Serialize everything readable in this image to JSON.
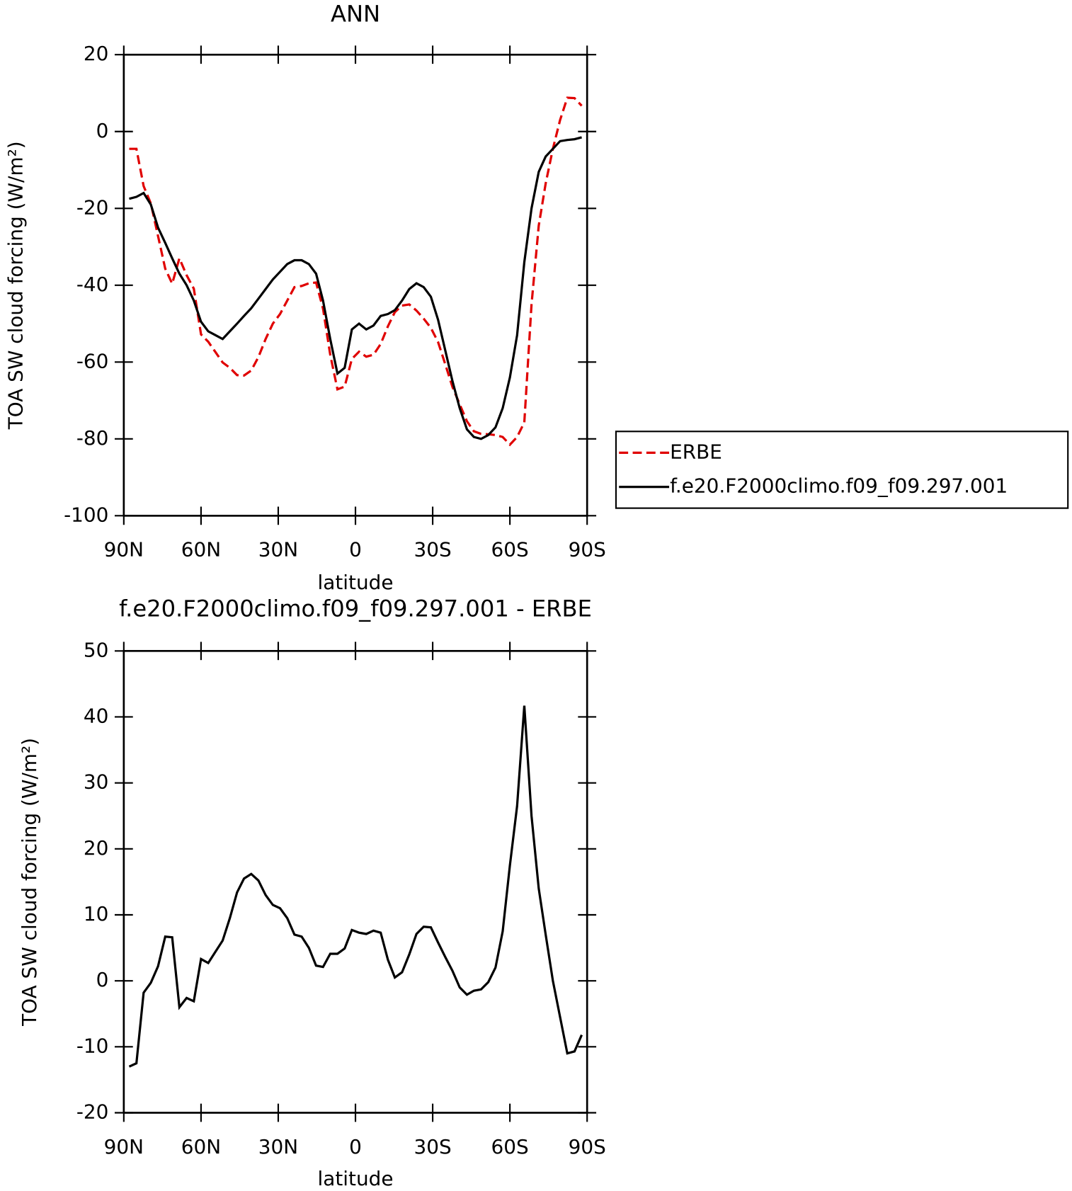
{
  "chart_data": [
    {
      "type": "line",
      "title": "ANN",
      "xlabel": "latitude",
      "ylabel": "TOA SW cloud forcing (W/m²)",
      "x": [
        87.9,
        85.1,
        82.3,
        79.5,
        76.7,
        73.9,
        71.2,
        68.4,
        65.6,
        62.8,
        60.0,
        57.2,
        54.4,
        51.6,
        48.8,
        46.0,
        43.3,
        40.5,
        37.7,
        34.9,
        32.1,
        29.3,
        26.5,
        23.7,
        20.9,
        18.1,
        15.3,
        12.6,
        9.8,
        7.0,
        4.2,
        1.4,
        -1.4,
        -4.2,
        -7.0,
        -9.8,
        -12.6,
        -15.3,
        -18.1,
        -20.9,
        -23.7,
        -26.5,
        -29.3,
        -32.1,
        -34.9,
        -37.7,
        -40.5,
        -43.3,
        -46.0,
        -48.8,
        -51.6,
        -54.4,
        -57.2,
        -60.0,
        -62.8,
        -65.6,
        -68.4,
        -71.2,
        -73.9,
        -76.7,
        -79.5,
        -82.3,
        -85.1,
        -87.9
      ],
      "series": [
        {
          "name": "ERBE",
          "color": "#e00000",
          "linestyle": "dashed",
          "values": [
            -4.5,
            -4.5,
            -14.2,
            -18.7,
            -27.2,
            -35.7,
            -39.6,
            -33.0,
            -37.4,
            -40.9,
            -52.8,
            -54.7,
            -57.4,
            -60.1,
            -61.5,
            -63.4,
            -63.5,
            -62.2,
            -58.7,
            -54.0,
            -50.0,
            -47.5,
            -44.0,
            -40.5,
            -40.2,
            -39.5,
            -39.3,
            -46.1,
            -58.1,
            -67.1,
            -66.4,
            -59.2,
            -57.3,
            -58.6,
            -58.1,
            -55.3,
            -50.7,
            -47.0,
            -45.3,
            -45.0,
            -46.6,
            -48.7,
            -51.1,
            -54.8,
            -60.6,
            -66.5,
            -71.0,
            -75.4,
            -78.0,
            -78.7,
            -78.8,
            -79.0,
            -79.5,
            -81.5,
            -79.5,
            -75.7,
            -45.0,
            -24.5,
            -13.5,
            -4.5,
            3.0,
            8.8,
            8.7,
            6.7
          ]
        },
        {
          "name": "f.e20.F2000climo.f09_f09.297.001",
          "color": "#000000",
          "linestyle": "solid",
          "values": [
            -17.5,
            -17.0,
            -16.0,
            -19.0,
            -25.0,
            -29.0,
            -33.0,
            -37.0,
            -40.0,
            -44.0,
            -49.5,
            -52.0,
            -53.0,
            -54.0,
            -52.0,
            -50.0,
            -48.0,
            -46.0,
            -43.5,
            -41.0,
            -38.5,
            -36.5,
            -34.5,
            -33.5,
            -33.5,
            -34.5,
            -37.0,
            -44.0,
            -54.0,
            -63.0,
            -61.5,
            -51.5,
            -50.0,
            -51.5,
            -50.5,
            -48.0,
            -47.5,
            -46.5,
            -44.0,
            -41.0,
            -39.5,
            -40.5,
            -43.0,
            -49.0,
            -57.0,
            -65.0,
            -72.0,
            -77.5,
            -79.5,
            -80.0,
            -79.0,
            -77.0,
            -72.0,
            -64.0,
            -53.0,
            -34.0,
            -20.0,
            -10.5,
            -6.5,
            -4.5,
            -2.5,
            -2.2,
            -2.0,
            -1.5
          ]
        }
      ],
      "xlim": [
        90,
        -90
      ],
      "xticks": [
        {
          "value": 90,
          "label": "90N"
        },
        {
          "value": 60,
          "label": "60N"
        },
        {
          "value": 30,
          "label": "30N"
        },
        0,
        {
          "value": -30,
          "label": "30S"
        },
        {
          "value": -60,
          "label": "60S"
        },
        {
          "value": -90,
          "label": "90S"
        }
      ],
      "ylim": [
        -100,
        20
      ],
      "yticks": [
        -100,
        -80,
        -60,
        -40,
        -20,
        0,
        20
      ],
      "legend": "right"
    },
    {
      "type": "line",
      "title": "f.e20.F2000climo.f09_f09.297.001 - ERBE",
      "xlabel": "latitude",
      "ylabel": "TOA SW cloud forcing (W/m²)",
      "x": [
        87.9,
        85.1,
        82.3,
        79.5,
        76.7,
        73.9,
        71.2,
        68.4,
        65.6,
        62.8,
        60.0,
        57.2,
        54.4,
        51.6,
        48.8,
        46.0,
        43.3,
        40.5,
        37.7,
        34.9,
        32.1,
        29.3,
        26.5,
        23.7,
        20.9,
        18.1,
        15.3,
        12.6,
        9.8,
        7.0,
        4.2,
        1.4,
        -1.4,
        -4.2,
        -7.0,
        -9.8,
        -12.6,
        -15.3,
        -18.1,
        -20.9,
        -23.7,
        -26.5,
        -29.3,
        -32.1,
        -34.9,
        -37.7,
        -40.5,
        -43.3,
        -46.0,
        -48.8,
        -51.6,
        -54.4,
        -57.2,
        -60.0,
        -62.8,
        -65.6,
        -68.4,
        -71.2,
        -73.9,
        -76.7,
        -79.5,
        -82.3,
        -85.1,
        -87.9
      ],
      "series": [
        {
          "color": "#000000",
          "linestyle": "solid",
          "values": [
            -13.0,
            -12.5,
            -1.8,
            -0.3,
            2.2,
            6.7,
            6.6,
            -4.0,
            -2.6,
            -3.1,
            3.3,
            2.7,
            4.4,
            6.1,
            9.5,
            13.4,
            15.5,
            16.2,
            15.2,
            13.0,
            11.5,
            11.0,
            9.5,
            7.0,
            6.7,
            5.0,
            2.3,
            2.1,
            4.1,
            4.1,
            4.9,
            7.7,
            7.3,
            7.1,
            7.6,
            7.3,
            3.2,
            0.5,
            1.3,
            4.0,
            7.1,
            8.2,
            8.1,
            5.8,
            3.6,
            1.5,
            -1.0,
            -2.1,
            -1.5,
            -1.3,
            -0.2,
            2.0,
            7.5,
            17.5,
            26.5,
            41.7,
            25.0,
            14.0,
            7.0,
            0.0,
            -5.5,
            -11.0,
            -10.7,
            -8.2
          ]
        }
      ],
      "xlim": [
        90,
        -90
      ],
      "xticks": [
        {
          "value": 90,
          "label": "90N"
        },
        {
          "value": 60,
          "label": "60N"
        },
        {
          "value": 30,
          "label": "30N"
        },
        0,
        {
          "value": -30,
          "label": "30S"
        },
        {
          "value": -60,
          "label": "60S"
        },
        {
          "value": -90,
          "label": "90S"
        }
      ],
      "ylim": [
        -20,
        50
      ],
      "yticks": [
        -20,
        -10,
        0,
        10,
        20,
        30,
        40,
        50
      ]
    }
  ]
}
